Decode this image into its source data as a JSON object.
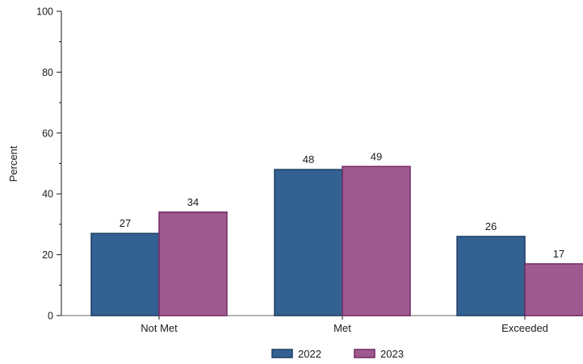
{
  "chart_data": {
    "type": "bar",
    "title": "",
    "xlabel": "",
    "ylabel": "Percent",
    "ylim": [
      0,
      100
    ],
    "yticks": [
      0,
      20,
      40,
      60,
      80,
      100
    ],
    "categories": [
      "Not Met",
      "Met",
      "Exceeded"
    ],
    "series": [
      {
        "name": "2022",
        "values": [
          27,
          48,
          26
        ],
        "color": "#336191"
      },
      {
        "name": "2023",
        "values": [
          34,
          49,
          17
        ],
        "color": "#9e5a8e"
      }
    ],
    "data_labels": [
      [
        "27",
        "48",
        "26"
      ],
      [
        "34",
        "49",
        "17"
      ]
    ],
    "bar_edges": [
      "#1f3f66",
      "#742a66"
    ],
    "grid": false,
    "legend": "bottom-center"
  }
}
